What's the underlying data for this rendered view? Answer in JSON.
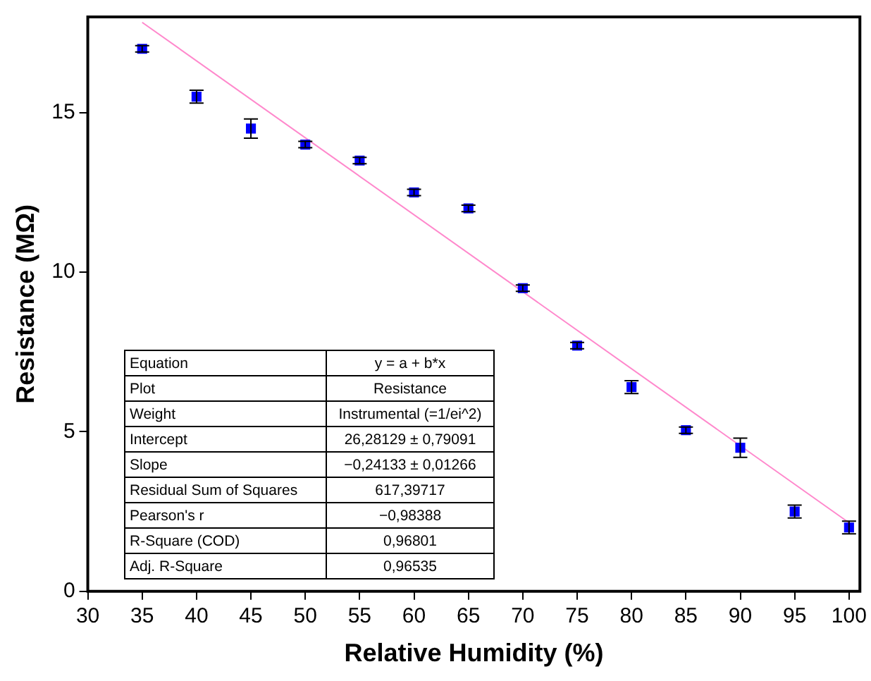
{
  "chart_data": {
    "type": "scatter",
    "xlabel": "Relative Humidity (%)",
    "ylabel": "Resistance (MΩ)",
    "xlim": [
      30,
      101
    ],
    "xticks": [
      30,
      35,
      40,
      45,
      50,
      55,
      60,
      65,
      70,
      75,
      80,
      85,
      90,
      95,
      100
    ],
    "ylim": [
      0,
      18
    ],
    "yticks": [
      0,
      5,
      10,
      15
    ],
    "grid": false,
    "legend": false,
    "marker": "square",
    "series": [
      {
        "color": "#0000ff",
        "x": [
          35,
          40,
          45,
          50,
          55,
          60,
          65,
          70,
          75,
          80,
          85,
          90,
          95,
          100
        ],
        "values": [
          17.0,
          15.5,
          14.5,
          14.0,
          13.5,
          12.5,
          12.0,
          9.5,
          7.7,
          6.4,
          5.05,
          4.5,
          2.5,
          2.0
        ],
        "errors": [
          0.1,
          0.2,
          0.3,
          0.1,
          0.1,
          0.1,
          0.1,
          0.1,
          0.1,
          0.2,
          0.1,
          0.3,
          0.2,
          0.2
        ]
      },
      {
        "type": "line",
        "color": "#ff88cc",
        "marker": "none",
        "x": [
          35,
          100
        ],
        "values": [
          17.83,
          2.15
        ]
      }
    ],
    "annotations": [
      "Equation",
      "y = a + b*x",
      "Plot",
      "Resistance",
      "Weight",
      "Instrumental (=1/ei^2)",
      "Intercept",
      "26,28129 ± 0,79091",
      "Slope",
      "−0,24133 ± 0,01266",
      "Residual Sum of Squares",
      "617,39717",
      "Pearson's r",
      "−0,98388",
      "R-Square (COD)",
      "0,96801",
      "Adj. R-Square",
      "0,96535"
    ]
  }
}
